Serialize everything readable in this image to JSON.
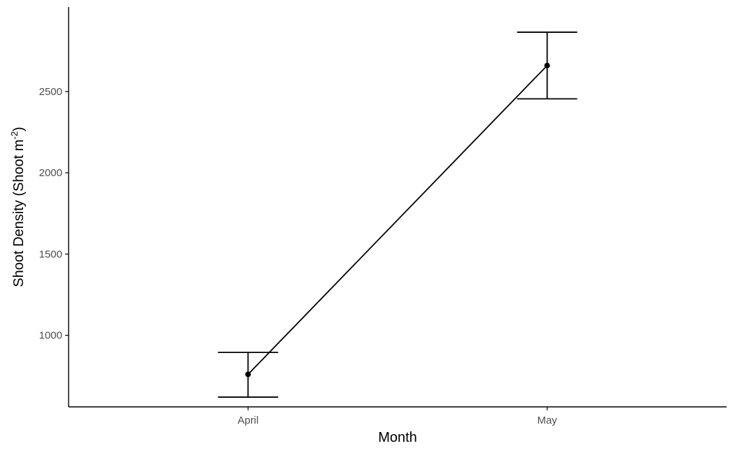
{
  "chart_data": {
    "type": "line",
    "title": "",
    "xlabel": "Month",
    "ylabel": {
      "main": "Shoot Density (Shoot m",
      "superscript": "-2",
      "close": ")"
    },
    "categories": [
      "April",
      "May"
    ],
    "series": [
      {
        "values": [
          760,
          2660
        ],
        "error_lower": [
          620,
          2455
        ],
        "error_upper": [
          895,
          2865
        ]
      }
    ],
    "yticks": [
      1000,
      1500,
      2000,
      2500
    ],
    "ylim": [
      560,
      3020
    ],
    "grid": false,
    "colors": {
      "line": "#000000",
      "axis": "#000000",
      "tick_label": "#4d4d4d"
    }
  }
}
